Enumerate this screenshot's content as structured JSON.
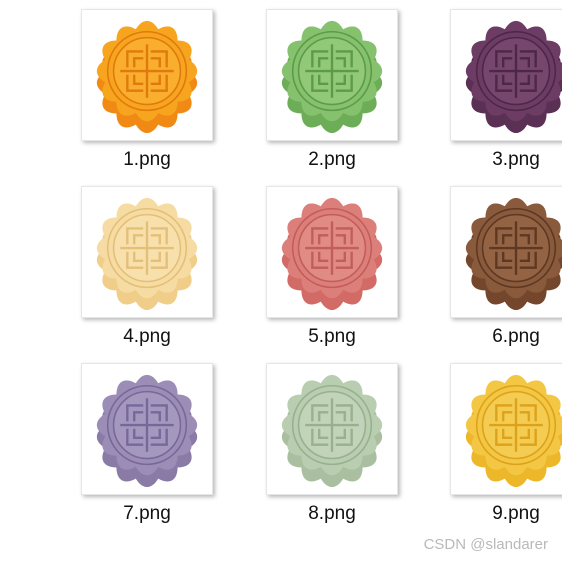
{
  "files": [
    {
      "name": "1.png",
      "icon": "mooncake-orange-icon",
      "colors": {
        "top": "#f7a51e",
        "side": "#f18a15",
        "line": "#e0790f",
        "highlight": "#fbc04a"
      }
    },
    {
      "name": "2.png",
      "icon": "mooncake-green-icon",
      "colors": {
        "top": "#86c26d",
        "side": "#6ead58",
        "line": "#5d9a49",
        "highlight": "#a6d68c"
      }
    },
    {
      "name": "3.png",
      "icon": "mooncake-purple-icon",
      "colors": {
        "top": "#6d3c64",
        "side": "#5b3055",
        "line": "#4c2748",
        "highlight": "#8a5980"
      }
    },
    {
      "name": "4.png",
      "icon": "mooncake-cream-icon",
      "colors": {
        "top": "#f6dca3",
        "side": "#f0cd88",
        "line": "#e3bf78",
        "highlight": "#fbe9bf"
      }
    },
    {
      "name": "5.png",
      "icon": "mooncake-pink-icon",
      "colors": {
        "top": "#dc7f7a",
        "side": "#d26a66",
        "line": "#c25d59",
        "highlight": "#eca29c"
      }
    },
    {
      "name": "6.png",
      "icon": "mooncake-brown-icon",
      "colors": {
        "top": "#8a5a3c",
        "side": "#74472d",
        "line": "#5d3822",
        "highlight": "#a67654"
      }
    },
    {
      "name": "7.png",
      "icon": "mooncake-lavender-icon",
      "colors": {
        "top": "#9b8db5",
        "side": "#8a7aa6",
        "line": "#77689a",
        "highlight": "#b7aecf"
      }
    },
    {
      "name": "8.png",
      "icon": "mooncake-sage-icon",
      "colors": {
        "top": "#b9cdb0",
        "side": "#a9bfa0",
        "line": "#98b08e",
        "highlight": "#d1e0ca"
      }
    },
    {
      "name": "9.png",
      "icon": "mooncake-yellow-icon",
      "colors": {
        "top": "#f3c744",
        "side": "#edb72a",
        "line": "#dda21b",
        "highlight": "#f8d86e"
      }
    }
  ],
  "watermark": "CSDN @slandarer"
}
